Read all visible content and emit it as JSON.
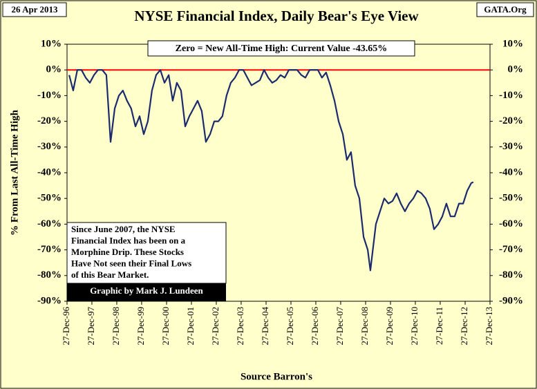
{
  "chart_data": {
    "type": "line",
    "title": "NYSE Financial Index, Daily Bear's Eye View",
    "date_label": "26 Apr 2013",
    "source_tag": "GATA.Org",
    "ylabel": "% From Last All-Time High",
    "xlabel": "Source Barron's",
    "annotation": "Zero = New All-Time High: Current Value -43.65%",
    "note_lines": [
      "Since June 2007, the NYSE",
      "Financial Index has been on a",
      "Morphine Drip. These Stocks",
      "Have Not seen their Final Lows",
      "of this Bear Market."
    ],
    "credit": "Graphic by Mark J. Lundeen",
    "reference_line": {
      "value": 0,
      "color": "#ff0000"
    },
    "xlim": [
      "1996-12-27",
      "2013-12-27"
    ],
    "xticks": [
      {
        "value": "1996-12-27",
        "label": "27-Dec-96"
      },
      {
        "value": "1997-12-27",
        "label": "27-Dec-97"
      },
      {
        "value": "1998-12-27",
        "label": "27-Dec-98"
      },
      {
        "value": "1999-12-27",
        "label": "27-Dec-99"
      },
      {
        "value": "2000-12-27",
        "label": "27-Dec-00"
      },
      {
        "value": "2001-12-27",
        "label": "27-Dec-01"
      },
      {
        "value": "2002-12-27",
        "label": "27-Dec-02"
      },
      {
        "value": "2003-12-27",
        "label": "27-Dec-03"
      },
      {
        "value": "2004-12-27",
        "label": "27-Dec-04"
      },
      {
        "value": "2005-12-27",
        "label": "27-Dec-05"
      },
      {
        "value": "2006-12-27",
        "label": "27-Dec-06"
      },
      {
        "value": "2007-12-27",
        "label": "27-Dec-07"
      },
      {
        "value": "2008-12-27",
        "label": "27-Dec-08"
      },
      {
        "value": "2009-12-27",
        "label": "27-Dec-09"
      },
      {
        "value": "2010-12-27",
        "label": "27-Dec-10"
      },
      {
        "value": "2011-12-27",
        "label": "27-Dec-11"
      },
      {
        "value": "2012-12-27",
        "label": "27-Dec-12"
      },
      {
        "value": "2013-12-27",
        "label": "27-Dec-13"
      }
    ],
    "ylim": [
      -90,
      10
    ],
    "yticks": [
      {
        "value": 10,
        "label": "10%"
      },
      {
        "value": 0,
        "label": "0%"
      },
      {
        "value": -10,
        "label": "-10%"
      },
      {
        "value": -20,
        "label": "-20%"
      },
      {
        "value": -30,
        "label": "-30%"
      },
      {
        "value": -40,
        "label": "-40%"
      },
      {
        "value": -50,
        "label": "-50%"
      },
      {
        "value": -60,
        "label": "-60%"
      },
      {
        "value": -70,
        "label": "-70%"
      },
      {
        "value": -80,
        "label": "-80%"
      },
      {
        "value": -90,
        "label": "-90%"
      }
    ],
    "y2lim": [
      -90,
      10
    ],
    "y2ticks": [
      {
        "value": 10,
        "label": "10%"
      },
      {
        "value": 0,
        "label": "0%"
      },
      {
        "value": -10,
        "label": "-10%"
      },
      {
        "value": -20,
        "label": "-20%"
      },
      {
        "value": -30,
        "label": "-30%"
      },
      {
        "value": -40,
        "label": "-40%"
      },
      {
        "value": -50,
        "label": "-50%"
      },
      {
        "value": -60,
        "label": "-60%"
      },
      {
        "value": -70,
        "label": "-70%"
      },
      {
        "value": -80,
        "label": "-80%"
      },
      {
        "value": -90,
        "label": "-90%"
      }
    ],
    "x": [
      "1997-01-27",
      "1997-03-27",
      "1997-05-27",
      "1997-07-27",
      "1997-09-27",
      "1997-11-27",
      "1998-01-27",
      "1998-03-27",
      "1998-05-27",
      "1998-07-27",
      "1998-09-27",
      "1998-11-27",
      "1999-01-27",
      "1999-03-27",
      "1999-05-27",
      "1999-07-27",
      "1999-09-27",
      "1999-11-27",
      "2000-01-27",
      "2000-03-27",
      "2000-05-27",
      "2000-07-27",
      "2000-09-27",
      "2000-11-27",
      "2001-01-27",
      "2001-03-27",
      "2001-05-27",
      "2001-07-27",
      "2001-09-27",
      "2001-11-27",
      "2002-01-27",
      "2002-03-27",
      "2002-05-27",
      "2002-07-27",
      "2002-09-27",
      "2002-11-27",
      "2003-01-27",
      "2003-03-27",
      "2003-05-27",
      "2003-07-27",
      "2003-09-27",
      "2003-11-27",
      "2004-01-27",
      "2004-03-27",
      "2004-05-27",
      "2004-07-27",
      "2004-09-27",
      "2004-11-27",
      "2005-01-27",
      "2005-03-27",
      "2005-05-27",
      "2005-07-27",
      "2005-09-27",
      "2005-11-27",
      "2006-01-27",
      "2006-03-27",
      "2006-05-27",
      "2006-07-27",
      "2006-09-27",
      "2006-11-27",
      "2007-01-27",
      "2007-03-27",
      "2007-05-27",
      "2007-07-27",
      "2007-09-27",
      "2007-11-27",
      "2008-01-27",
      "2008-03-27",
      "2008-05-27",
      "2008-07-27",
      "2008-09-27",
      "2008-11-27",
      "2009-01-27",
      "2009-03-07",
      "2009-05-27",
      "2009-07-27",
      "2009-09-27",
      "2009-11-27",
      "2010-01-27",
      "2010-03-27",
      "2010-05-27",
      "2010-07-27",
      "2010-09-27",
      "2010-11-27",
      "2011-01-27",
      "2011-03-27",
      "2011-05-27",
      "2011-07-27",
      "2011-09-27",
      "2011-11-27",
      "2012-01-27",
      "2012-03-27",
      "2012-05-27",
      "2012-07-27",
      "2012-09-27",
      "2012-11-27",
      "2013-01-27",
      "2013-03-27",
      "2013-04-26"
    ],
    "series": [
      {
        "name": "NYSE Financial Index",
        "color": "#1a2a6c",
        "values": [
          -2,
          -8,
          0,
          0,
          -3,
          -5,
          -2,
          0,
          0,
          -2,
          -28,
          -15,
          -10,
          -8,
          -12,
          -15,
          -22,
          -18,
          -25,
          -20,
          -8,
          -2,
          0,
          -5,
          -2,
          -12,
          -5,
          -8,
          -22,
          -18,
          -15,
          -12,
          -16,
          -28,
          -25,
          -20,
          -20,
          -18,
          -10,
          -5,
          -3,
          0,
          0,
          -3,
          -6,
          -5,
          -4,
          0,
          -3,
          -5,
          -4,
          -2,
          -3,
          0,
          0,
          0,
          -2,
          -3,
          0,
          0,
          0,
          -3,
          -1,
          -6,
          -12,
          -20,
          -25,
          -35,
          -32,
          -45,
          -50,
          -65,
          -70,
          -78,
          -60,
          -55,
          -50,
          -52,
          -51,
          -48,
          -52,
          -55,
          -52,
          -50,
          -47,
          -48,
          -50,
          -54,
          -62,
          -60,
          -57,
          -52,
          -57,
          -57,
          -52,
          -52,
          -47,
          -44,
          -43.65
        ]
      }
    ]
  }
}
